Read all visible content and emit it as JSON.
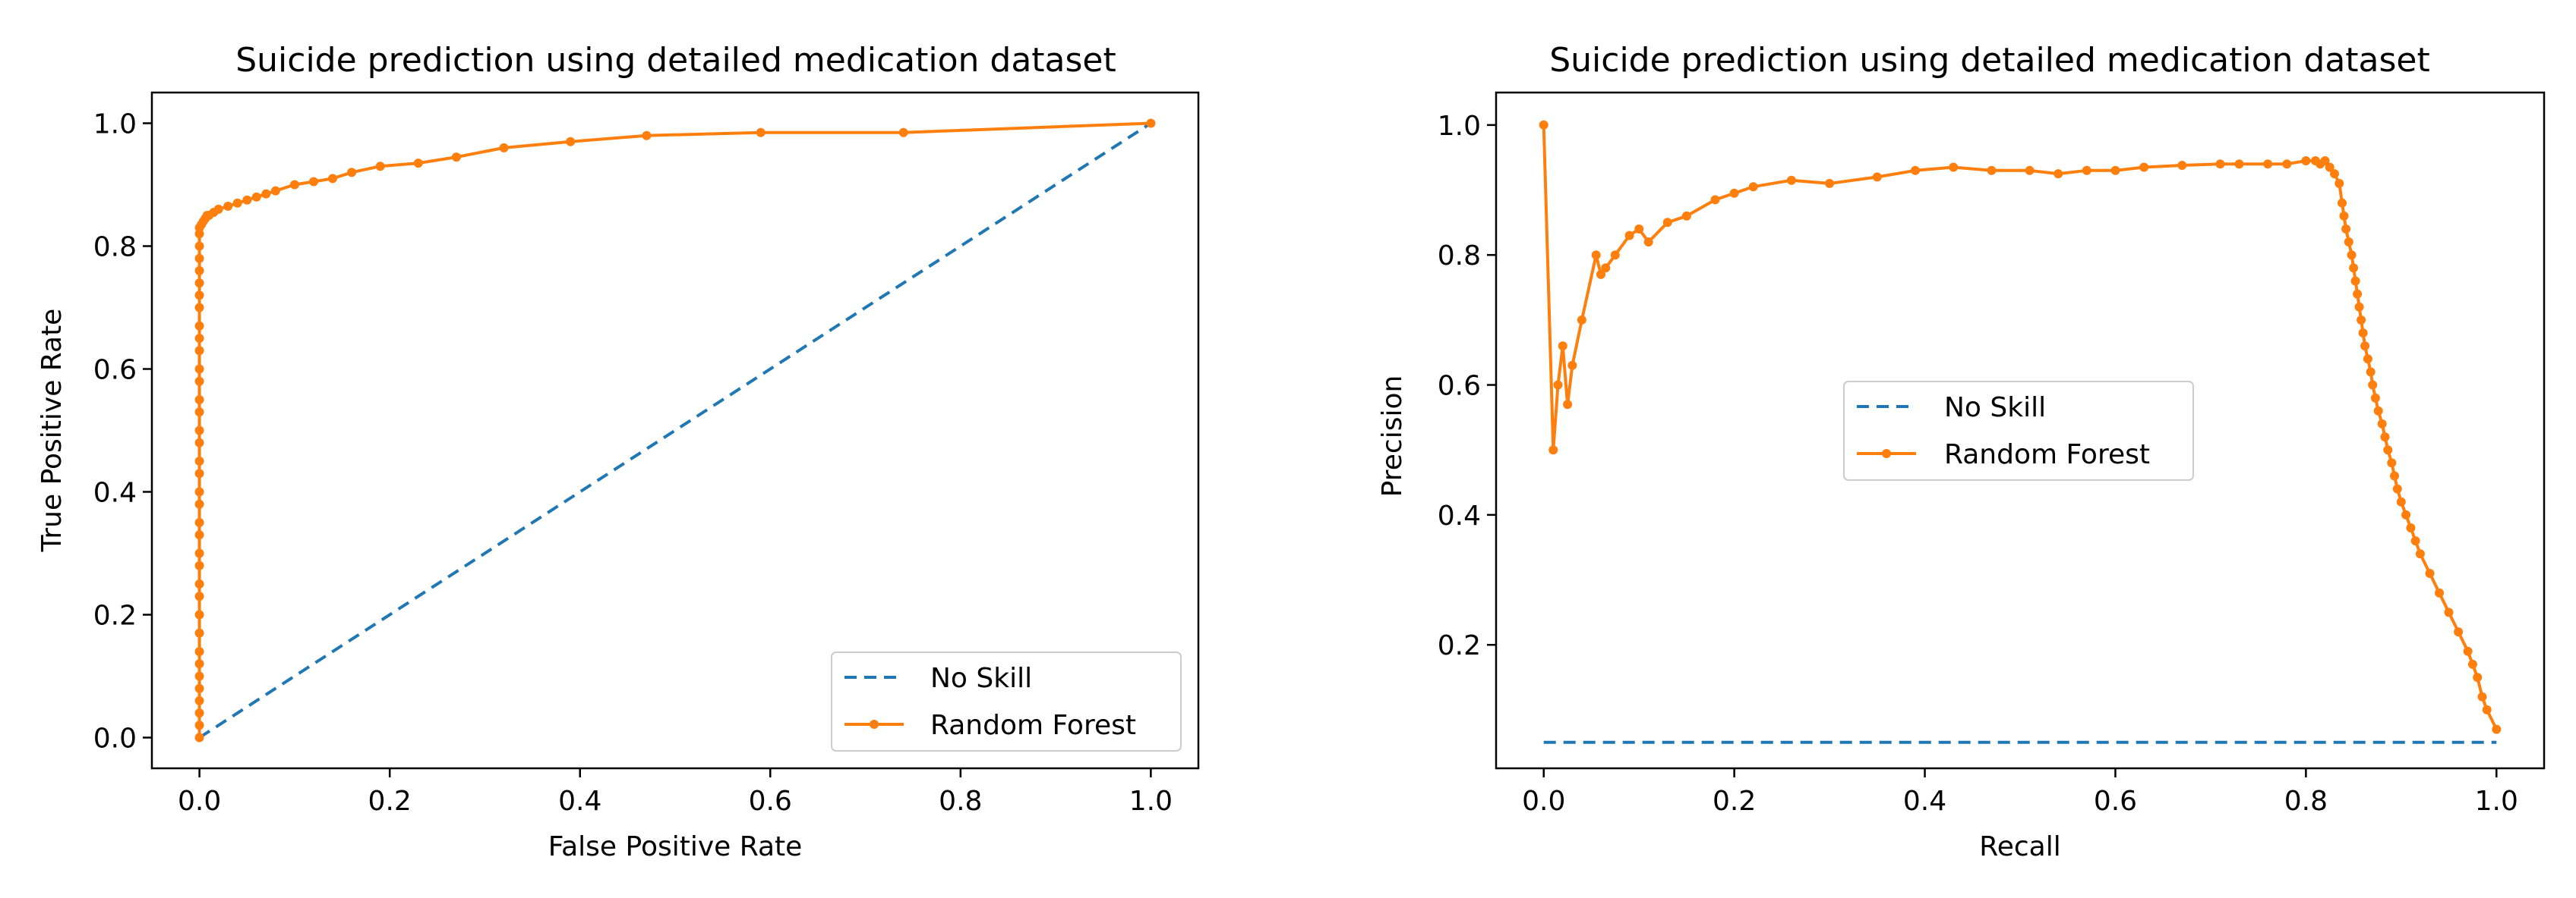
{
  "chart_data": [
    {
      "type": "line",
      "title": "Suicide prediction using detailed medication dataset",
      "xlabel": "False Positive Rate",
      "ylabel": "True Positive Rate",
      "xlim": [
        -0.05,
        1.05
      ],
      "ylim": [
        -0.05,
        1.05
      ],
      "xticks": [
        0.0,
        0.2,
        0.4,
        0.6,
        0.8,
        1.0
      ],
      "xtick_labels": [
        "0.0",
        "0.2",
        "0.4",
        "0.6",
        "0.8",
        "1.0"
      ],
      "yticks": [
        0.0,
        0.2,
        0.4,
        0.6,
        0.8,
        1.0
      ],
      "ytick_labels": [
        "0.0",
        "0.2",
        "0.4",
        "0.6",
        "0.8",
        "1.0"
      ],
      "grid": false,
      "legend_position": "lower-right",
      "series": [
        {
          "name": "No Skill",
          "style": "dashed",
          "color": "#1f77b4",
          "markers": false,
          "x": [
            0,
            1
          ],
          "y": [
            0,
            1
          ]
        },
        {
          "name": "Random Forest",
          "style": "solid",
          "color": "#ff7f0e",
          "markers": true,
          "x": [
            0,
            0,
            0,
            0,
            0,
            0,
            0,
            0,
            0,
            0,
            0,
            0,
            0,
            0,
            0,
            0,
            0,
            0,
            0,
            0,
            0,
            0,
            0,
            0,
            0,
            0,
            0,
            0,
            0,
            0,
            0,
            0,
            0,
            0,
            0,
            0,
            0,
            0.002,
            0.004,
            0.006,
            0.008,
            0.01,
            0.015,
            0.02,
            0.03,
            0.04,
            0.05,
            0.06,
            0.07,
            0.08,
            0.1,
            0.12,
            0.14,
            0.16,
            0.19,
            0.23,
            0.27,
            0.32,
            0.39,
            0.47,
            0.59,
            0.74,
            1.0
          ],
          "y": [
            0,
            0.02,
            0.04,
            0.06,
            0.08,
            0.1,
            0.12,
            0.14,
            0.17,
            0.2,
            0.23,
            0.25,
            0.28,
            0.3,
            0.33,
            0.35,
            0.38,
            0.4,
            0.43,
            0.45,
            0.48,
            0.5,
            0.53,
            0.55,
            0.58,
            0.6,
            0.63,
            0.65,
            0.67,
            0.7,
            0.72,
            0.74,
            0.76,
            0.78,
            0.8,
            0.82,
            0.83,
            0.835,
            0.84,
            0.845,
            0.85,
            0.85,
            0.855,
            0.86,
            0.865,
            0.87,
            0.875,
            0.88,
            0.885,
            0.89,
            0.9,
            0.905,
            0.91,
            0.92,
            0.93,
            0.935,
            0.945,
            0.96,
            0.97,
            0.98,
            0.985,
            0.985,
            1.0
          ]
        }
      ]
    },
    {
      "type": "line",
      "title": "Suicide prediction using detailed medication dataset",
      "xlabel": "Recall",
      "ylabel": "Precision",
      "xlim": [
        -0.05,
        1.05
      ],
      "ylim": [
        0.01,
        1.05
      ],
      "xticks": [
        0.0,
        0.2,
        0.4,
        0.6,
        0.8,
        1.0
      ],
      "xtick_labels": [
        "0.0",
        "0.2",
        "0.4",
        "0.6",
        "0.8",
        "1.0"
      ],
      "yticks": [
        0.2,
        0.4,
        0.6,
        0.8,
        1.0
      ],
      "ytick_labels": [
        "0.2",
        "0.4",
        "0.6",
        "0.8",
        "1.0"
      ],
      "grid": false,
      "legend_position": "center",
      "series": [
        {
          "name": "No Skill",
          "style": "dashed",
          "color": "#1f77b4",
          "markers": false,
          "x": [
            0,
            1
          ],
          "y": [
            0.05,
            0.05
          ]
        },
        {
          "name": "Random Forest",
          "style": "solid",
          "color": "#ff7f0e",
          "markers": true,
          "x": [
            0.0,
            0.01,
            0.015,
            0.02,
            0.025,
            0.03,
            0.04,
            0.055,
            0.06,
            0.065,
            0.075,
            0.09,
            0.1,
            0.11,
            0.13,
            0.15,
            0.18,
            0.2,
            0.22,
            0.26,
            0.3,
            0.35,
            0.39,
            0.43,
            0.47,
            0.51,
            0.54,
            0.57,
            0.6,
            0.63,
            0.67,
            0.71,
            0.73,
            0.76,
            0.78,
            0.8,
            0.81,
            0.815,
            0.82,
            0.825,
            0.83,
            0.835,
            0.838,
            0.84,
            0.842,
            0.845,
            0.848,
            0.85,
            0.852,
            0.854,
            0.856,
            0.858,
            0.86,
            0.862,
            0.865,
            0.868,
            0.87,
            0.873,
            0.876,
            0.88,
            0.883,
            0.886,
            0.89,
            0.893,
            0.896,
            0.9,
            0.905,
            0.91,
            0.915,
            0.92,
            0.93,
            0.94,
            0.95,
            0.96,
            0.97,
            0.975,
            0.98,
            0.985,
            0.99,
            1.0
          ],
          "y": [
            1.0,
            0.5,
            0.6,
            0.66,
            0.57,
            0.63,
            0.7,
            0.8,
            0.77,
            0.78,
            0.8,
            0.83,
            0.84,
            0.82,
            0.85,
            0.86,
            0.885,
            0.895,
            0.905,
            0.915,
            0.91,
            0.92,
            0.93,
            0.935,
            0.93,
            0.93,
            0.925,
            0.93,
            0.93,
            0.935,
            0.938,
            0.94,
            0.94,
            0.94,
            0.94,
            0.945,
            0.945,
            0.94,
            0.945,
            0.935,
            0.925,
            0.91,
            0.88,
            0.86,
            0.84,
            0.82,
            0.8,
            0.78,
            0.76,
            0.74,
            0.72,
            0.7,
            0.68,
            0.66,
            0.64,
            0.62,
            0.6,
            0.58,
            0.56,
            0.54,
            0.52,
            0.5,
            0.48,
            0.46,
            0.44,
            0.42,
            0.4,
            0.38,
            0.36,
            0.34,
            0.31,
            0.28,
            0.25,
            0.22,
            0.19,
            0.17,
            0.15,
            0.12,
            0.1,
            0.07
          ]
        }
      ]
    }
  ]
}
